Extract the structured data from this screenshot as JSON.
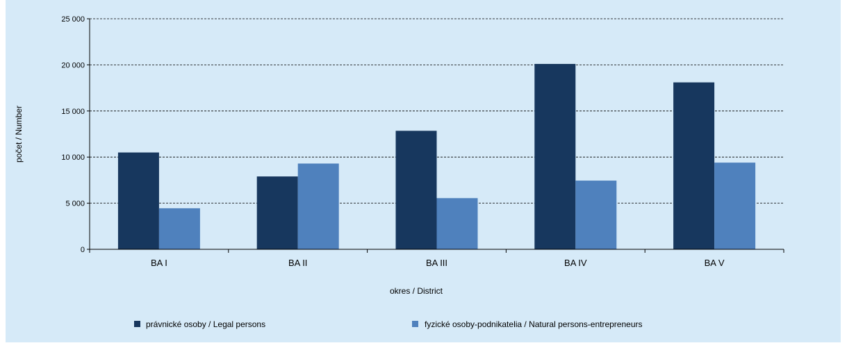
{
  "chart_data": {
    "type": "bar",
    "title": "",
    "xlabel": "okres / District",
    "ylabel": "počet / Number",
    "ylim": [
      0,
      25000
    ],
    "yticks": [
      {
        "value": 0,
        "label": "0"
      },
      {
        "value": 5000,
        "label": "5 000"
      },
      {
        "value": 10000,
        "label": "10 000"
      },
      {
        "value": 15000,
        "label": "15 000"
      },
      {
        "value": 20000,
        "label": "20 000"
      },
      {
        "value": 25000,
        "label": "25 000"
      }
    ],
    "grid": true,
    "legend_position": "bottom",
    "categories": [
      "BA I",
      "BA II",
      "BA III",
      "BA IV",
      "BA V"
    ],
    "series": [
      {
        "name": "právnické osoby / Legal persons",
        "color": "#17375e",
        "values": [
          10500,
          7900,
          12850,
          20100,
          18100
        ]
      },
      {
        "name": "fyzické osoby-podnikatelia / Natural persons-entrepreneurs",
        "color": "#4f81bd",
        "values": [
          4450,
          9300,
          5550,
          7450,
          9400
        ]
      }
    ],
    "background_color": "#d6eaf8"
  }
}
